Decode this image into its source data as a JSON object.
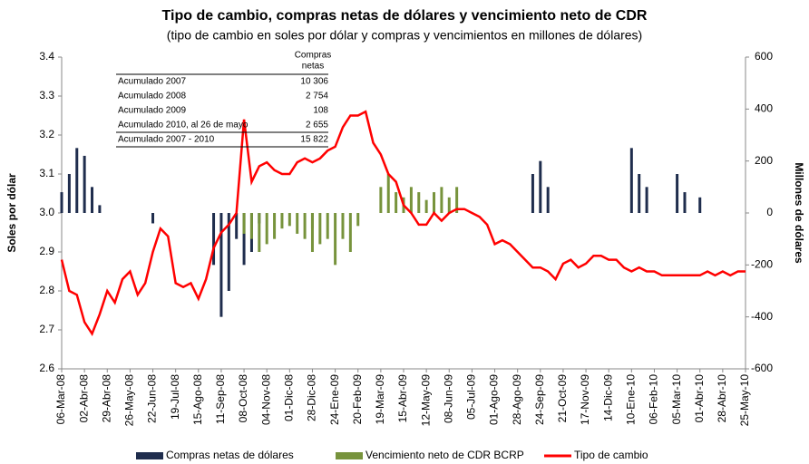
{
  "chart_data": {
    "type": "bar_line",
    "title": "Tipo de cambio, compras netas de dólares y vencimiento neto de CDR",
    "subtitle": "(tipo de cambio en soles por dólar y compras y vencimientos en millones de dólares)",
    "y_label": "Soles por dólar",
    "y2_label": "Millones de dólares",
    "categories": [
      "06-Mar-08",
      null,
      null,
      "02-Abr-08",
      null,
      null,
      "29-Abr-08",
      null,
      null,
      "26-May-08",
      null,
      null,
      "22-Jun-08",
      null,
      null,
      "19-Jul-08",
      null,
      null,
      "15-Ago-08",
      null,
      null,
      "11-Sep-08",
      null,
      null,
      "08-Oct-08",
      null,
      null,
      "04-Nov-08",
      null,
      null,
      "01-Dic-08",
      null,
      null,
      "28-Dic-08",
      null,
      null,
      "24-Ene-09",
      null,
      null,
      "20-Feb-09",
      null,
      null,
      "19-Mar-09",
      null,
      null,
      "15-Abr-09",
      null,
      null,
      "12-May-09",
      null,
      null,
      "08-Jun-09",
      null,
      null,
      "05-Jul-09",
      null,
      null,
      "01-Ago-09",
      null,
      null,
      "28-Ago-09",
      null,
      null,
      "24-Sep-09",
      null,
      null,
      "21-Oct-09",
      null,
      null,
      "17-Nov-09",
      null,
      null,
      "14-Dic-09",
      null,
      null,
      "10-Ene-10",
      null,
      null,
      "06-Feb-10",
      null,
      null,
      "05-Mar-10",
      null,
      null,
      "01-Abr-10",
      null,
      null,
      "28-Abr-10",
      null,
      null,
      "25-May-10"
    ],
    "series": [
      {
        "name": "Compras netas de dólares",
        "type": "bar",
        "axis": "y2",
        "color": "#1f2d4d",
        "values": [
          80,
          150,
          250,
          220,
          100,
          30,
          0,
          0,
          0,
          0,
          0,
          0,
          -40,
          0,
          0,
          0,
          0,
          0,
          0,
          0,
          -200,
          -400,
          -300,
          -100,
          -200,
          -150,
          -40,
          0,
          0,
          0,
          0,
          0,
          0,
          -60,
          0,
          0,
          0,
          0,
          0,
          0,
          0,
          0,
          0,
          0,
          0,
          0,
          0,
          0,
          0,
          0,
          0,
          0,
          0,
          0,
          0,
          0,
          0,
          0,
          0,
          0,
          0,
          0,
          150,
          200,
          100,
          0,
          0,
          0,
          0,
          0,
          0,
          0,
          0,
          0,
          0,
          250,
          150,
          100,
          0,
          0,
          0,
          150,
          80,
          0,
          60,
          0,
          0,
          0,
          0,
          0,
          0
        ]
      },
      {
        "name": "Vencimiento neto de CDR BCRP",
        "type": "bar",
        "axis": "y2",
        "color": "#77933c",
        "values": [
          0,
          0,
          0,
          0,
          0,
          0,
          0,
          0,
          0,
          0,
          0,
          0,
          0,
          0,
          0,
          0,
          0,
          0,
          0,
          0,
          0,
          0,
          0,
          0,
          -80,
          -100,
          -150,
          -120,
          -100,
          -60,
          -50,
          -80,
          -100,
          -150,
          -120,
          -100,
          -200,
          -100,
          -150,
          -50,
          0,
          0,
          100,
          150,
          80,
          60,
          100,
          80,
          50,
          80,
          100,
          60,
          100,
          0,
          0,
          0,
          0,
          0,
          0,
          0,
          0,
          0,
          0,
          0,
          0,
          0,
          0,
          0,
          0,
          0,
          0,
          0,
          0,
          0,
          0,
          0,
          0,
          0,
          0,
          0,
          0,
          0,
          0,
          0,
          0,
          0,
          0,
          0,
          0,
          0,
          0
        ]
      },
      {
        "name": "Tipo de cambio",
        "type": "line",
        "axis": "y",
        "color": "#ff0000",
        "values": [
          2.88,
          2.8,
          2.79,
          2.72,
          2.69,
          2.74,
          2.8,
          2.77,
          2.83,
          2.85,
          2.79,
          2.82,
          2.9,
          2.96,
          2.94,
          2.82,
          2.81,
          2.82,
          2.78,
          2.83,
          2.91,
          2.95,
          2.97,
          3.0,
          3.24,
          3.08,
          3.12,
          3.13,
          3.11,
          3.1,
          3.1,
          3.13,
          3.14,
          3.13,
          3.14,
          3.16,
          3.17,
          3.22,
          3.25,
          3.25,
          3.26,
          3.18,
          3.15,
          3.1,
          3.08,
          3.02,
          3.0,
          2.97,
          2.97,
          3.0,
          2.98,
          3.0,
          3.01,
          3.01,
          3.0,
          2.99,
          2.97,
          2.92,
          2.93,
          2.92,
          2.9,
          2.88,
          2.86,
          2.86,
          2.85,
          2.83,
          2.87,
          2.88,
          2.86,
          2.87,
          2.89,
          2.89,
          2.88,
          2.88,
          2.86,
          2.85,
          2.86,
          2.85,
          2.85,
          2.84,
          2.84,
          2.84,
          2.84,
          2.84,
          2.84,
          2.85,
          2.84,
          2.85,
          2.84,
          2.85,
          2.85
        ]
      }
    ],
    "ylim": [
      2.6,
      3.4
    ],
    "yticks": [
      2.6,
      2.7,
      2.8,
      2.9,
      {
        "value": 3,
        "label": "3.0"
      },
      3.1,
      3.2,
      3.3,
      3.4
    ],
    "y2lim": [
      -600,
      600
    ],
    "y2ticks": [
      -600,
      -400,
      -200,
      0,
      200,
      400,
      600
    ],
    "legend": "bottom",
    "table": {
      "header": [
        "Compras",
        "netas"
      ],
      "rows": [
        [
          "Acumulado 2007",
          "10 306"
        ],
        [
          "Acumulado 2008",
          "2 754"
        ],
        [
          "Acumulado 2009",
          "108"
        ],
        [
          "Acumulado 2010, al 26 de mayo",
          "2 655"
        ],
        [
          "Acumulado 2007 - 2010",
          "15 822"
        ]
      ]
    }
  }
}
